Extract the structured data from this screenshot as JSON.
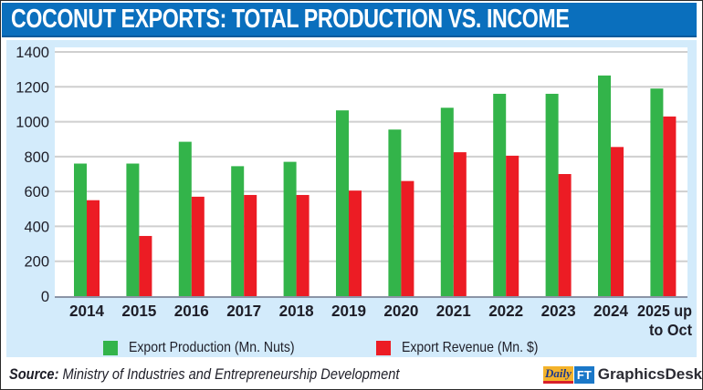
{
  "header": {
    "title": "COCONUT EXPORTS: TOTAL PRODUCTION VS. INCOME"
  },
  "colors": {
    "header_bg": "#0a6fbd",
    "panel_bg": "#d3ebfb",
    "production": "#33b44a",
    "revenue": "#ec1c24",
    "grid": "#cfcfcf"
  },
  "chart_data": {
    "type": "bar",
    "title": "COCONUT EXPORTS: TOTAL PRODUCTION VS. INCOME",
    "xlabel": "",
    "ylabel": "",
    "ylim": [
      0,
      1400
    ],
    "yticks": [
      0,
      200,
      400,
      600,
      800,
      1000,
      1200,
      1400
    ],
    "ytick_labels": [
      "0",
      "200",
      "400",
      "600",
      "800",
      "1000",
      "1200",
      "1400"
    ],
    "grid": true,
    "legend_position": "bottom",
    "categories": [
      "2014",
      "2015",
      "2016",
      "2017",
      "2018",
      "2019",
      "2020",
      "2021",
      "2022",
      "2023",
      "2024",
      "2025 up to Oct"
    ],
    "category_label_lines": [
      [
        "2014"
      ],
      [
        "2015"
      ],
      [
        "2016"
      ],
      [
        "2017"
      ],
      [
        "2018"
      ],
      [
        "2019"
      ],
      [
        "2020"
      ],
      [
        "2021"
      ],
      [
        "2022"
      ],
      [
        "2023"
      ],
      [
        "2024"
      ],
      [
        "2025 up",
        "to Oct"
      ]
    ],
    "series": [
      {
        "name": "Export Production (Mn. Nuts)",
        "color": "#33b44a",
        "values": [
          760,
          760,
          885,
          745,
          770,
          1065,
          955,
          1080,
          1160,
          1160,
          1265,
          1190
        ]
      },
      {
        "name": "Export Revenue (Mn. $)",
        "color": "#ec1c24",
        "values": [
          550,
          345,
          570,
          580,
          580,
          605,
          660,
          825,
          805,
          700,
          855,
          1030
        ]
      }
    ]
  },
  "legend": {
    "items": [
      {
        "label": "Export Production (Mn. Nuts)",
        "color": "#33b44a"
      },
      {
        "label": "Export Revenue (Mn. $)",
        "color": "#ec1c24"
      }
    ]
  },
  "footer": {
    "source_label": "Source:",
    "source_text": " Ministry of Industries and Entrepreneurship Development",
    "logo_daily": "Daily",
    "logo_ft": "FT",
    "logo_desk": "GraphicsDesk"
  }
}
